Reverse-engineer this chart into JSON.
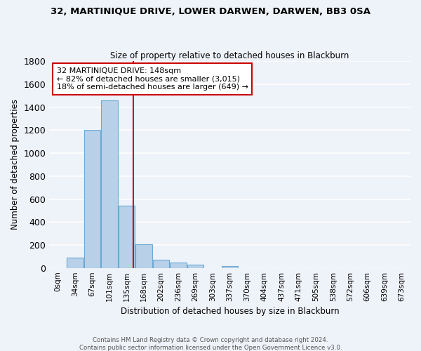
{
  "title": "32, MARTINIQUE DRIVE, LOWER DARWEN, DARWEN, BB3 0SA",
  "subtitle": "Size of property relative to detached houses in Blackburn",
  "xlabel": "Distribution of detached houses by size in Blackburn",
  "ylabel": "Number of detached properties",
  "bar_labels": [
    "0sqm",
    "34sqm",
    "67sqm",
    "101sqm",
    "135sqm",
    "168sqm",
    "202sqm",
    "236sqm",
    "269sqm",
    "303sqm",
    "337sqm",
    "370sqm",
    "404sqm",
    "437sqm",
    "471sqm",
    "505sqm",
    "538sqm",
    "572sqm",
    "606sqm",
    "639sqm",
    "673sqm"
  ],
  "bar_values": [
    0,
    90,
    1200,
    1460,
    540,
    205,
    70,
    48,
    28,
    0,
    15,
    0,
    0,
    0,
    0,
    0,
    0,
    0,
    0,
    0,
    0
  ],
  "bar_color": "#b8d0e8",
  "bar_edge_color": "#6aaad4",
  "vline_color": "#cc0000",
  "vline_pos": 4.39,
  "annotation_title": "32 MARTINIQUE DRIVE: 148sqm",
  "annotation_line1": "← 82% of detached houses are smaller (3,015)",
  "annotation_line2": "18% of semi-detached houses are larger (649) →",
  "annotation_box_color": "white",
  "annotation_box_edge": "#cc0000",
  "ylim": [
    0,
    1800
  ],
  "yticks": [
    0,
    200,
    400,
    600,
    800,
    1000,
    1200,
    1400,
    1600,
    1800
  ],
  "footer1": "Contains HM Land Registry data © Crown copyright and database right 2024.",
  "footer2": "Contains public sector information licensed under the Open Government Licence v3.0.",
  "bg_color": "#eef2f9",
  "grid_color": "#ffffff"
}
